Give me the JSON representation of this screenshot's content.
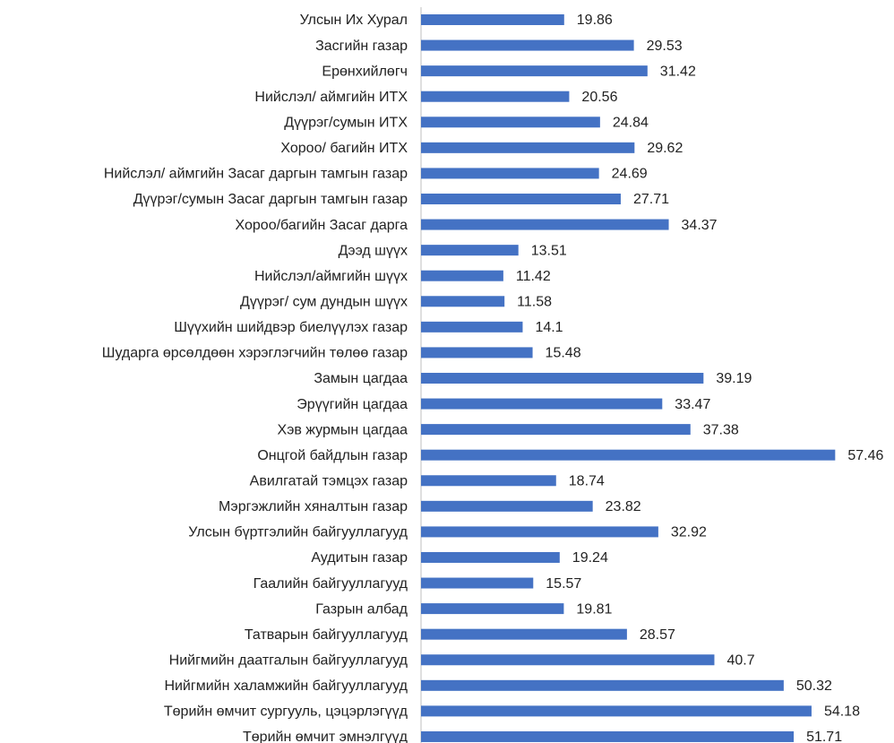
{
  "chart_data": {
    "type": "bar",
    "orientation": "horizontal",
    "color": "#4472c4",
    "categories": [
      "Улсын Их Хурал",
      "Засгийн газар",
      "Ерөнхийлөгч",
      "Нийслэл/ аймгийн ИТХ",
      "Дүүрэг/сумын ИТХ",
      "Хороо/ багийн ИТХ",
      "Нийслэл/ аймгийн Засаг даргын тамгын газар",
      "Дүүрэг/сумын Засаг даргын тамгын газар",
      "Хороо/багийн Засаг дарга",
      "Дээд шүүх",
      "Нийслэл/аймгийн шүүх",
      "Дүүрэг/ сум дундын шүүх",
      "Шүүхийн шийдвэр биелүүлэх газар",
      "Шударга өрсөлдөөн хэрэглэгчийн төлөө газар",
      "Замын цагдаа",
      "Эрүүгийн цагдаа",
      "Хэв журмын цагдаа",
      "Онцгой байдлын газар",
      "Авилгатай тэмцэх газар",
      "Мэргэжлийн хяналтын газар",
      "Улсын бүртгэлийн байгууллагууд",
      "Аудитын газар",
      "Гаалийн байгууллагууд",
      "Газрын албад",
      "Татварын байгууллагууд",
      "Нийгмийн даатгалын байгууллагууд",
      "Нийгмийн халамжийн байгууллагууд",
      "Төрийн өмчит сургууль, цэцэрлэгүүд",
      "Төрийн өмчит эмнэлгүүд"
    ],
    "values": [
      19.86,
      29.53,
      31.42,
      20.56,
      24.84,
      29.62,
      24.69,
      27.71,
      34.37,
      13.51,
      11.42,
      11.58,
      14.1,
      15.48,
      39.19,
      33.47,
      37.38,
      57.46,
      18.74,
      23.82,
      32.92,
      19.24,
      15.57,
      19.81,
      28.57,
      40.7,
      50.32,
      54.18,
      51.71
    ],
    "xlim": [
      0,
      65
    ]
  }
}
